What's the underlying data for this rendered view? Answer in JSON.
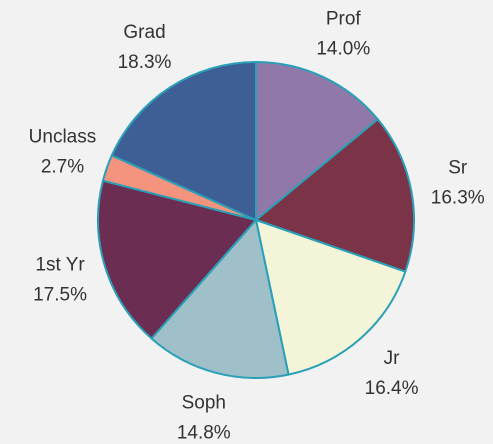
{
  "chart_data": {
    "type": "pie",
    "categories": [
      "Prof",
      "Sr",
      "Jr",
      "Soph",
      "1st Yr",
      "Unclass",
      "Grad"
    ],
    "values": [
      14.0,
      16.3,
      16.4,
      14.8,
      17.5,
      2.7,
      18.3
    ],
    "value_labels": [
      "14.0%",
      "16.3%",
      "16.4%",
      "14.8%",
      "17.5%",
      "2.7%",
      "18.3%"
    ],
    "colors": [
      "#9078a8",
      "#7b3347",
      "#f3f4d8",
      "#9fc0c8",
      "#6b2d52",
      "#f4937e",
      "#3e5f96"
    ]
  }
}
